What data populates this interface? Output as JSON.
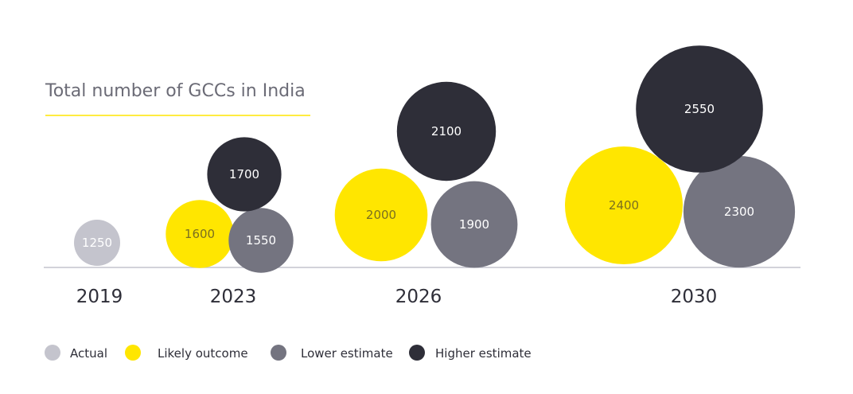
{
  "chart_data": {
    "type": "bubble",
    "title": "Total number of GCCs in India",
    "categories": [
      "2019",
      "2023",
      "2026",
      "2030"
    ],
    "series": [
      {
        "name": "Actual",
        "color": "#c4c4cd",
        "values": [
          1250,
          null,
          null,
          null
        ]
      },
      {
        "name": "Likely outcome",
        "color": "#ffe600",
        "values": [
          null,
          1600,
          2000,
          2400
        ]
      },
      {
        "name": "Lower estimate",
        "color": "#747480",
        "values": [
          null,
          1550,
          1900,
          2300
        ]
      },
      {
        "name": "Higher estimate",
        "color": "#2e2e38",
        "values": [
          null,
          1700,
          2100,
          2550
        ]
      }
    ],
    "legend_position": "bottom-left",
    "grid": false
  }
}
